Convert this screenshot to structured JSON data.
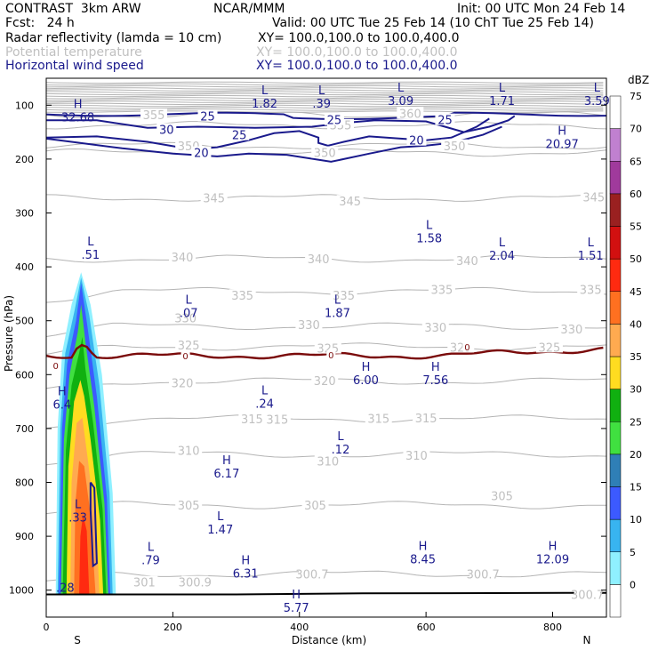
{
  "header": {
    "model": "CONTRAST  3km ARW",
    "center": "NCAR/MMM",
    "init": "Init: 00 UTC Mon 24 Feb 14",
    "fcst": "Fcst:   24 h",
    "valid": "Valid: 00 UTC Tue 25 Feb 14 (10 ChT Tue 25 Feb 14)",
    "fields": [
      {
        "name": "Radar reflectivity (lamda = 10 cm)",
        "xy": "XY= 100.0,100.0 to 100.0,400.0"
      },
      {
        "name": "Potential temperature",
        "xy": "XY= 100.0,100.0 to 100.0,400.0"
      },
      {
        "name": "Horizontal wind speed",
        "xy": "XY= 100.0,100.0 to 100.0,400.0"
      }
    ]
  },
  "colors": {
    "reflectivity_text": "#000000",
    "theta_text": "#c0c0c0",
    "wind_text": "#1a1a8c",
    "theta_line": "#b4b4b4",
    "wind_line": "#1a1a8c",
    "freezing_line": "#7a0a0a"
  },
  "chart_data": {
    "type": "cross-section",
    "xlabel": "Distance (km)",
    "ylabel": "Pressure (hPa)",
    "xlim": [
      0,
      885
    ],
    "ylim": [
      1050,
      50
    ],
    "x_ticks": [
      "0",
      "200",
      "400",
      "600",
      "800"
    ],
    "x_tick_values": [
      0,
      200,
      400,
      600,
      800
    ],
    "y_ticks": [
      "100",
      "200",
      "300",
      "400",
      "500",
      "600",
      "700",
      "800",
      "900",
      "1000"
    ],
    "y_tick_values": [
      100,
      200,
      300,
      400,
      500,
      600,
      700,
      800,
      900,
      1000
    ],
    "endpoints": {
      "left": "S",
      "right": "N"
    },
    "colorbar": {
      "unit": "dBZ",
      "levels": [
        0,
        5,
        10,
        15,
        20,
        25,
        30,
        35,
        40,
        45,
        50,
        55,
        60,
        65,
        70,
        75
      ],
      "colors": [
        "#ffffff",
        "#8ff0ff",
        "#38b4f0",
        "#3c5aff",
        "#2f7fb6",
        "#40e040",
        "#10b010",
        "#ffdc20",
        "#ffaa50",
        "#ff7020",
        "#ff2a10",
        "#d21010",
        "#9a2020",
        "#a03a9c",
        "#c080d0",
        "#ffffff"
      ]
    },
    "theta_labels": [
      {
        "x": 170,
        "p": 118,
        "text": "355"
      },
      {
        "x": 575,
        "p": 115,
        "text": "360"
      },
      {
        "x": 465,
        "p": 137,
        "text": "355"
      },
      {
        "x": 225,
        "p": 175,
        "text": "350"
      },
      {
        "x": 440,
        "p": 188,
        "text": "350"
      },
      {
        "x": 645,
        "p": 175,
        "text": "350"
      },
      {
        "x": 865,
        "p": 270,
        "text": "345"
      },
      {
        "x": 480,
        "p": 278,
        "text": "345"
      },
      {
        "x": 265,
        "p": 272,
        "text": "345"
      },
      {
        "x": 215,
        "p": 382,
        "text": "340"
      },
      {
        "x": 430,
        "p": 385,
        "text": "340"
      },
      {
        "x": 665,
        "p": 388,
        "text": "340"
      },
      {
        "x": 470,
        "p": 453,
        "text": "335"
      },
      {
        "x": 625,
        "p": 442,
        "text": "335"
      },
      {
        "x": 860,
        "p": 442,
        "text": "335"
      },
      {
        "x": 310,
        "p": 453,
        "text": "335"
      },
      {
        "x": 615,
        "p": 512,
        "text": "330"
      },
      {
        "x": 830,
        "p": 515,
        "text": "330"
      },
      {
        "x": 415,
        "p": 507,
        "text": "330"
      },
      {
        "x": 220,
        "p": 495,
        "text": "330"
      },
      {
        "x": 225,
        "p": 545,
        "text": "325"
      },
      {
        "x": 445,
        "p": 551,
        "text": "325"
      },
      {
        "x": 655,
        "p": 549,
        "text": "325"
      },
      {
        "x": 795,
        "p": 549,
        "text": "325"
      },
      {
        "x": 215,
        "p": 615,
        "text": "320"
      },
      {
        "x": 440,
        "p": 611,
        "text": "320"
      },
      {
        "x": 365,
        "p": 683,
        "text": "315"
      },
      {
        "x": 525,
        "p": 681,
        "text": "315"
      },
      {
        "x": 325,
        "p": 682,
        "text": "315"
      },
      {
        "x": 600,
        "p": 680,
        "text": "315"
      },
      {
        "x": 225,
        "p": 741,
        "text": "310"
      },
      {
        "x": 585,
        "p": 750,
        "text": "310"
      },
      {
        "x": 445,
        "p": 760,
        "text": "310"
      },
      {
        "x": 225,
        "p": 842,
        "text": "305"
      },
      {
        "x": 425,
        "p": 842,
        "text": "305"
      },
      {
        "x": 720,
        "p": 825,
        "text": "305"
      },
      {
        "x": 155,
        "p": 985,
        "text": "301"
      },
      {
        "x": 235,
        "p": 985,
        "text": "300.9"
      },
      {
        "x": 420,
        "p": 970,
        "text": "300.7"
      },
      {
        "x": 690,
        "p": 970,
        "text": "300.7"
      },
      {
        "x": 855,
        "p": 1008,
        "text": "300.7"
      }
    ],
    "extremes": [
      {
        "x": 50,
        "p": 105,
        "mark": "H",
        "value": "32.68",
        "group": "wind"
      },
      {
        "x": 345,
        "p": 80,
        "mark": "L",
        "value": "1.82",
        "group": "wind"
      },
      {
        "x": 435,
        "p": 80,
        "mark": "L",
        "value": ".39",
        "group": "wind"
      },
      {
        "x": 560,
        "p": 75,
        "mark": "L",
        "value": "3.09",
        "group": "wind"
      },
      {
        "x": 720,
        "p": 75,
        "mark": "L",
        "value": "1.71",
        "group": "wind"
      },
      {
        "x": 870,
        "p": 75,
        "mark": "L",
        "value": "3.59",
        "group": "wind"
      },
      {
        "x": 815,
        "p": 155,
        "mark": "H",
        "value": "20.97",
        "group": "wind"
      },
      {
        "x": 70,
        "p": 360,
        "mark": "L",
        "value": ".51",
        "group": "wind"
      },
      {
        "x": 605,
        "p": 330,
        "mark": "L",
        "value": "1.58",
        "group": "wind"
      },
      {
        "x": 720,
        "p": 362,
        "mark": "L",
        "value": "2.04",
        "group": "wind"
      },
      {
        "x": 860,
        "p": 362,
        "mark": "L",
        "value": "1.51",
        "group": "wind"
      },
      {
        "x": 225,
        "p": 468,
        "mark": "L",
        "value": ".07",
        "group": "wind"
      },
      {
        "x": 460,
        "p": 468,
        "mark": "L",
        "value": "1.87",
        "group": "wind"
      },
      {
        "x": 505,
        "p": 593,
        "mark": "H",
        "value": "6.00",
        "group": "wind"
      },
      {
        "x": 615,
        "p": 593,
        "mark": "H",
        "value": "7.56",
        "group": "wind"
      },
      {
        "x": 25,
        "p": 638,
        "mark": "H",
        "value": "6.4",
        "group": "wind"
      },
      {
        "x": 345,
        "p": 637,
        "mark": "L",
        "value": ".24",
        "group": "wind"
      },
      {
        "x": 465,
        "p": 722,
        "mark": "L",
        "value": ".12",
        "group": "wind"
      },
      {
        "x": 285,
        "p": 766,
        "mark": "H",
        "value": "6.17",
        "group": "wind"
      },
      {
        "x": 275,
        "p": 870,
        "mark": "L",
        "value": "1.47",
        "group": "wind"
      },
      {
        "x": 50,
        "p": 848,
        "mark": "L",
        "value": ".33",
        "group": "wind"
      },
      {
        "x": 165,
        "p": 927,
        "mark": "L",
        "value": ".79",
        "group": "wind"
      },
      {
        "x": 315,
        "p": 952,
        "mark": "H",
        "value": "6.31",
        "group": "wind"
      },
      {
        "x": 595,
        "p": 925,
        "mark": "H",
        "value": "8.45",
        "group": "wind"
      },
      {
        "x": 800,
        "p": 925,
        "mark": "H",
        "value": "12.09",
        "group": "wind"
      },
      {
        "x": 30,
        "p": 978,
        "mark": "",
        "value": ".28",
        "group": "wind"
      },
      {
        "x": 395,
        "p": 1015,
        "mark": "H",
        "value": "5.77",
        "group": "wind"
      }
    ],
    "wind_contour_labels": [
      {
        "x": 255,
        "p": 120,
        "text": "25"
      },
      {
        "x": 455,
        "p": 127,
        "text": "25"
      },
      {
        "x": 630,
        "p": 127,
        "text": "25"
      },
      {
        "x": 190,
        "p": 145,
        "text": "30"
      },
      {
        "x": 305,
        "p": 155,
        "text": "25"
      },
      {
        "x": 585,
        "p": 165,
        "text": "20"
      },
      {
        "x": 245,
        "p": 188,
        "text": "20"
      }
    ],
    "freezing_labels": [
      {
        "x": 15,
        "p": 583,
        "text": "0"
      },
      {
        "x": 220,
        "p": 565,
        "text": "0"
      },
      {
        "x": 450,
        "p": 563,
        "text": "0"
      },
      {
        "x": 665,
        "p": 548,
        "text": "0"
      }
    ]
  }
}
